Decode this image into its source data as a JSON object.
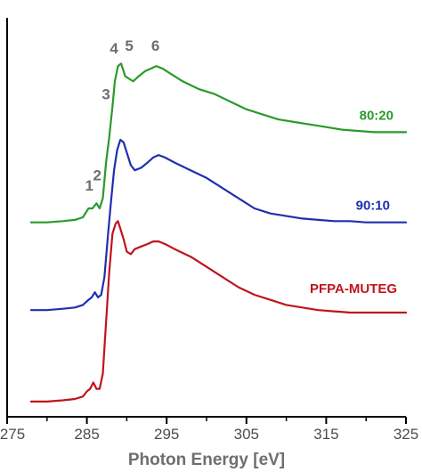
{
  "chart_data": {
    "type": "line",
    "title": "",
    "xlabel": "Photon Energy [eV]",
    "ylabel": "",
    "xlim": [
      275,
      325
    ],
    "x_ticks": [
      275,
      285,
      295,
      305,
      315,
      325
    ],
    "y_ticks_shown": false,
    "grid": false,
    "colors": {
      "PFPA-MUTEG": "#c0141c",
      "90:10": "#1f2fae",
      "80:20": "#2a9a2a",
      "axis": "#000000",
      "labels": "#6e6e6e"
    },
    "series_labels": [
      {
        "text": "80:20",
        "series": "80:20"
      },
      {
        "text": "90:10",
        "series": "90:10"
      },
      {
        "text": "PFPA-MUTEG",
        "series": "PFPA-MUTEG"
      }
    ],
    "peak_annotations": [
      {
        "text": "1",
        "x": 285.3,
        "y": 0.87
      },
      {
        "text": "2",
        "x": 286.3,
        "y": 0.91
      },
      {
        "text": "3",
        "x": 287.4,
        "y": 1.23
      },
      {
        "text": "4",
        "x": 288.4,
        "y": 1.41
      },
      {
        "text": "5",
        "x": 290.3,
        "y": 1.42
      },
      {
        "text": "6",
        "x": 293.6,
        "y": 1.42
      }
    ],
    "series": [
      {
        "name": "80:20",
        "x": [
          278,
          280,
          282,
          283.5,
          284.5,
          285.2,
          285.7,
          286.2,
          286.6,
          287.0,
          287.4,
          287.8,
          288.2,
          288.5,
          288.9,
          289.3,
          289.8,
          290.3,
          290.8,
          291.5,
          292.3,
          293.0,
          293.7,
          294.5,
          295.5,
          297,
          299,
          301,
          303,
          305,
          307,
          309,
          311,
          313,
          315,
          317,
          319,
          321,
          323,
          325
        ],
        "y": [
          0.745,
          0.745,
          0.75,
          0.755,
          0.765,
          0.8,
          0.8,
          0.82,
          0.8,
          0.84,
          0.98,
          1.08,
          1.2,
          1.3,
          1.36,
          1.37,
          1.32,
          1.31,
          1.3,
          1.32,
          1.34,
          1.35,
          1.36,
          1.35,
          1.33,
          1.3,
          1.27,
          1.25,
          1.22,
          1.19,
          1.17,
          1.15,
          1.14,
          1.13,
          1.12,
          1.11,
          1.105,
          1.1,
          1.1,
          1.1
        ]
      },
      {
        "name": "90:10",
        "x": [
          278,
          280,
          282,
          283.5,
          284.5,
          285.2,
          285.6,
          286.0,
          286.4,
          286.8,
          287.2,
          287.6,
          288.0,
          288.4,
          288.8,
          289.2,
          289.6,
          290.0,
          290.5,
          291.0,
          291.8,
          292.6,
          293.3,
          294.0,
          294.8,
          296,
          298,
          300,
          302,
          304,
          306,
          308,
          310,
          312,
          314,
          316,
          318,
          320,
          322,
          325
        ],
        "y": [
          0.4,
          0.4,
          0.405,
          0.41,
          0.42,
          0.44,
          0.45,
          0.47,
          0.45,
          0.46,
          0.53,
          0.68,
          0.82,
          0.95,
          1.03,
          1.07,
          1.06,
          1.02,
          0.97,
          0.95,
          0.96,
          0.98,
          1.0,
          1.01,
          1.0,
          0.98,
          0.95,
          0.92,
          0.88,
          0.84,
          0.8,
          0.78,
          0.77,
          0.76,
          0.755,
          0.75,
          0.75,
          0.745,
          0.745,
          0.745
        ]
      },
      {
        "name": "PFPA-MUTEG",
        "x": [
          278,
          280,
          282,
          283.5,
          284.5,
          285.0,
          285.4,
          285.8,
          286.2,
          286.6,
          287.0,
          287.4,
          287.8,
          288.2,
          288.6,
          288.9,
          289.2,
          289.6,
          290.0,
          290.5,
          291.0,
          291.8,
          292.6,
          293.3,
          294.0,
          294.8,
          296,
          298,
          300,
          302,
          304,
          306,
          308,
          310,
          312,
          314,
          316,
          318,
          320,
          325
        ],
        "y": [
          0.04,
          0.04,
          0.045,
          0.05,
          0.06,
          0.08,
          0.09,
          0.115,
          0.09,
          0.09,
          0.15,
          0.35,
          0.55,
          0.7,
          0.74,
          0.75,
          0.72,
          0.68,
          0.63,
          0.62,
          0.64,
          0.65,
          0.66,
          0.67,
          0.67,
          0.66,
          0.64,
          0.61,
          0.57,
          0.53,
          0.49,
          0.46,
          0.44,
          0.42,
          0.41,
          0.4,
          0.395,
          0.39,
          0.39,
          0.39
        ]
      }
    ]
  }
}
